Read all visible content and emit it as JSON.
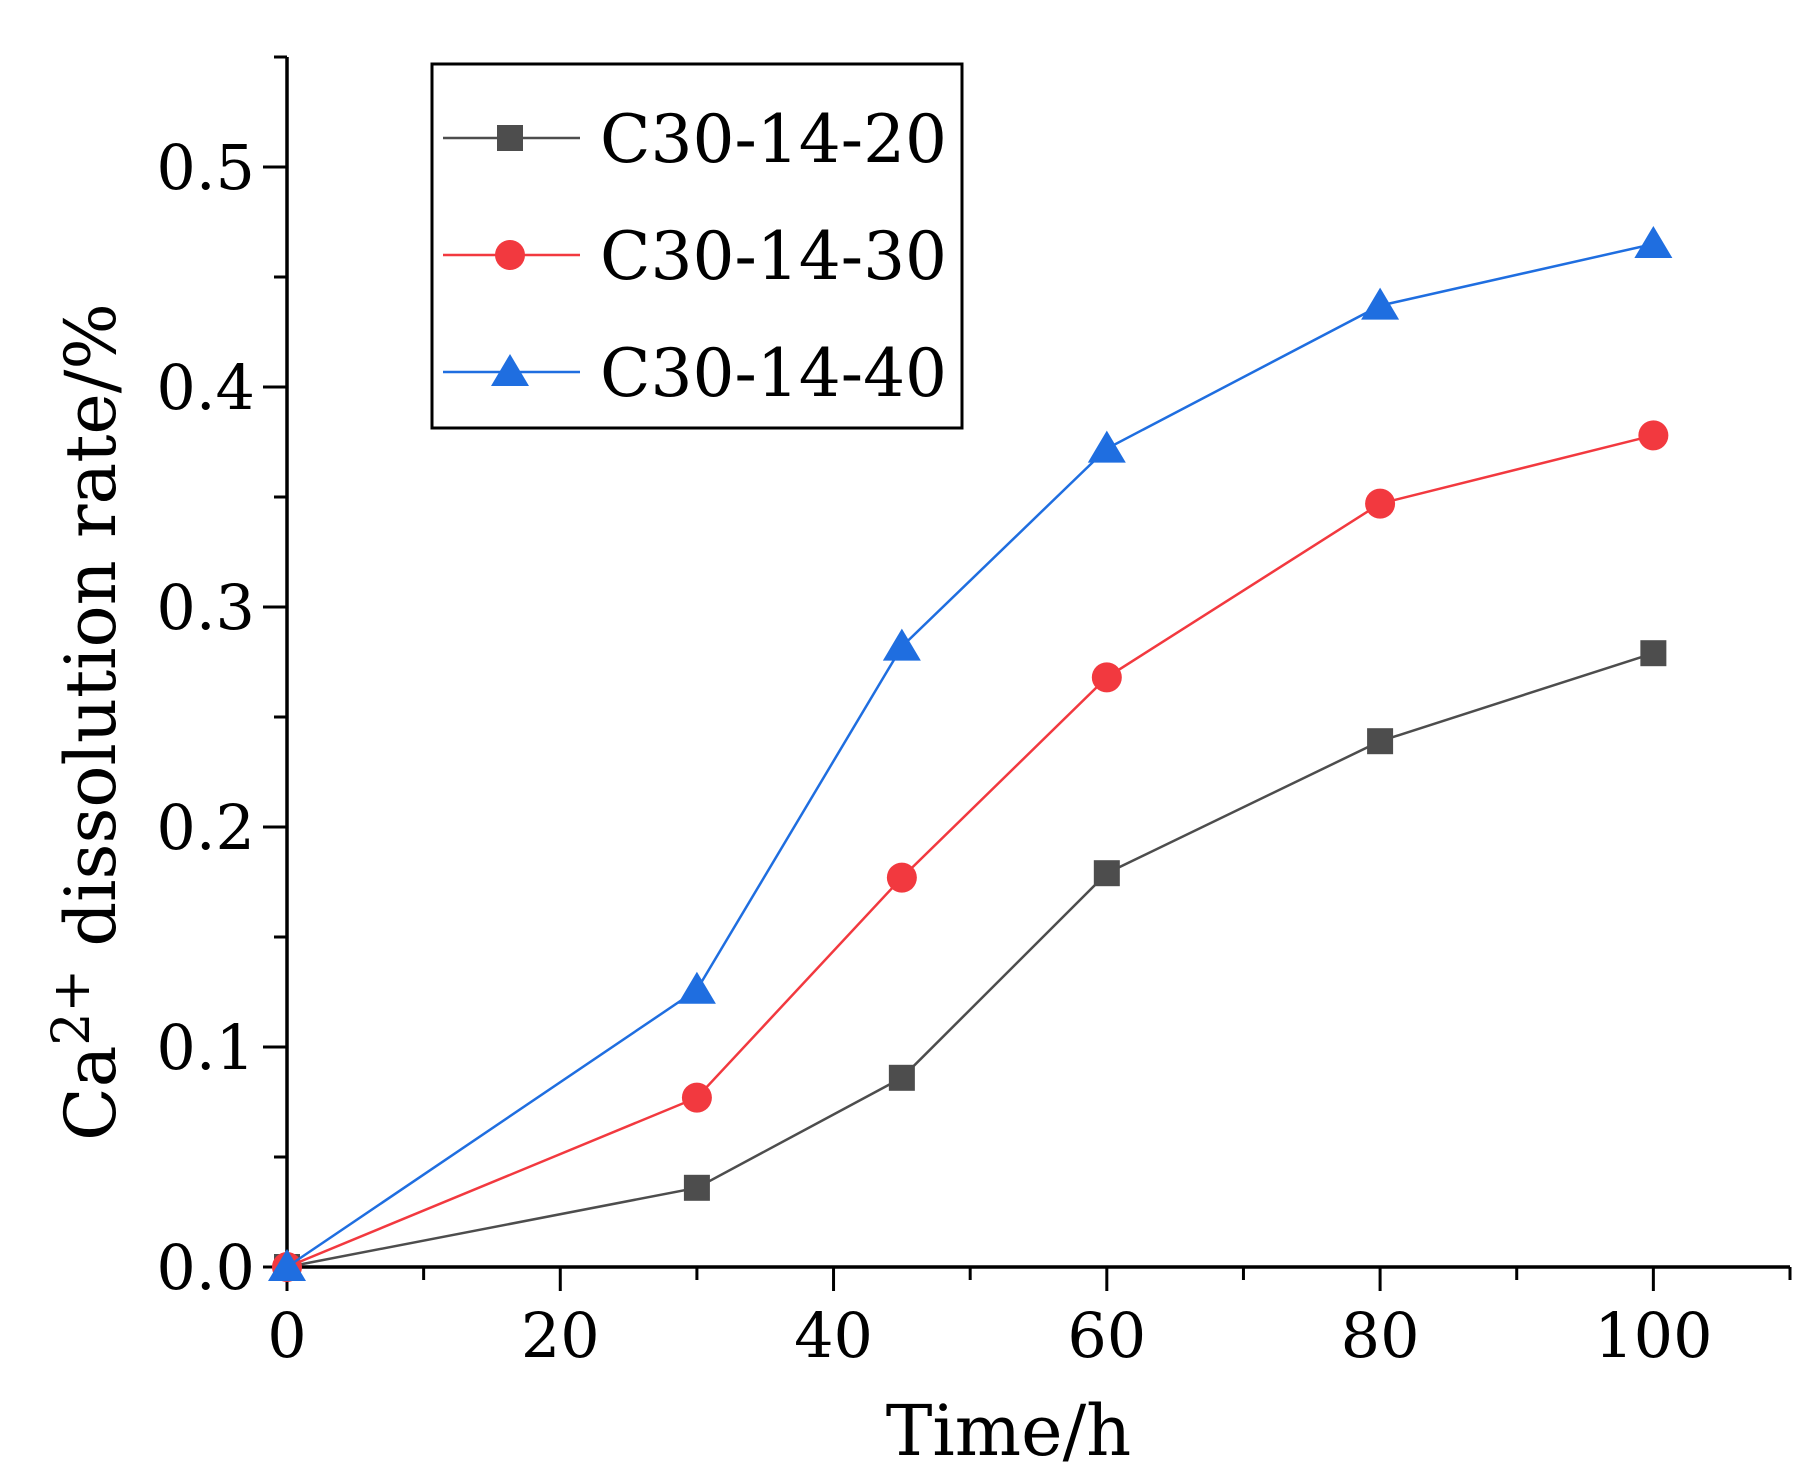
{
  "chart_data": {
    "type": "line",
    "xlabel": "Time/h",
    "ylabel": {
      "prefix": "Ca",
      "superscript": "2+",
      "suffix": " dissolution rate/%"
    },
    "xlim": [
      0,
      110
    ],
    "ylim": [
      0,
      0.55
    ],
    "xticks": [
      0,
      20,
      40,
      60,
      80,
      100
    ],
    "xtick_labels": [
      "0",
      "20",
      "40",
      "60",
      "80",
      "100"
    ],
    "xminor": [
      10,
      30,
      50,
      70,
      90,
      110
    ],
    "yticks": [
      0,
      0.1,
      0.2,
      0.3,
      0.4,
      0.5
    ],
    "ytick_labels": [
      "0.0",
      "0.1",
      "0.2",
      "0.3",
      "0.4",
      "0.5"
    ],
    "yminor": [
      0.05,
      0.15,
      0.25,
      0.35,
      0.45,
      0.55
    ],
    "grid": false,
    "legend_position": "top-left",
    "series": [
      {
        "name": "C30-14-20",
        "marker": "square",
        "color": "#4d4d4d",
        "x": [
          0,
          30,
          45,
          60,
          80,
          100
        ],
        "y": [
          0,
          0.036,
          0.086,
          0.179,
          0.239,
          0.279
        ]
      },
      {
        "name": "C30-14-30",
        "marker": "circle",
        "color": "#f2393f",
        "x": [
          0,
          30,
          45,
          60,
          80,
          100
        ],
        "y": [
          0,
          0.077,
          0.177,
          0.268,
          0.347,
          0.378
        ]
      },
      {
        "name": "C30-14-40",
        "marker": "triangle",
        "color": "#1f6ee0",
        "x": [
          0,
          30,
          45,
          60,
          80,
          100
        ],
        "y": [
          0,
          0.126,
          0.282,
          0.372,
          0.437,
          0.465
        ]
      }
    ]
  }
}
